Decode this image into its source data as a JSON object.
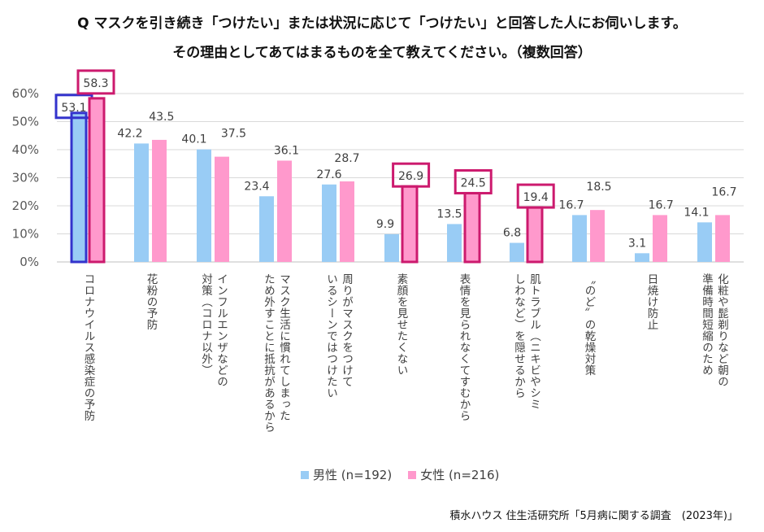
{
  "title_line1": "Q マスクを引き続き「つけたい」または状況に応じて「つけたい」と回答した人にお伺いします。",
  "title_line2": "その理由としてあてはまるものを全て教えてください。（複数回答）",
  "source": "積水ハウス 住生活研究所「5月病に関する調査　(2023年)」",
  "chart_data": {
    "type": "bar",
    "title": "",
    "xlabel": "",
    "ylabel": "",
    "ylim": [
      0,
      60
    ],
    "yticks": [
      "0%",
      "10%",
      "20%",
      "30%",
      "40%",
      "50%",
      "60%"
    ],
    "grid": true,
    "legend_placement": "bottom",
    "categories": [
      [
        "コロナウイルス感染症の予防"
      ],
      [
        "花粉の予防"
      ],
      [
        "インフルエンザなどの",
        "対策（コロナ以外）"
      ],
      [
        "マスク生活に慣れてしまった",
        "ため外すことに抵抗があるから"
      ],
      [
        "周りがマスクをつけて",
        "いるシーンではつけたい"
      ],
      [
        "素顔を見せたくない"
      ],
      [
        "表情を見られなくてすむから"
      ],
      [
        "肌トラブル（ニキビやシミ",
        "しわなど）を隠せるから"
      ],
      [
        "〝のど〟の乾燥対策"
      ],
      [
        "日焼け防止"
      ],
      [
        "化粧や髭剃りなど朝の",
        "準備時間短縮のため"
      ]
    ],
    "series": [
      {
        "name": "男性 (n=192)",
        "color": "#99ccf5",
        "values": [
          53.1,
          42.2,
          40.1,
          23.4,
          27.6,
          9.9,
          13.5,
          6.8,
          16.7,
          3.1,
          14.1
        ],
        "highlighted": [
          0
        ]
      },
      {
        "name": "女性 (n=216)",
        "color": "#ff99cc",
        "values": [
          58.3,
          43.5,
          37.5,
          36.1,
          28.7,
          26.9,
          24.5,
          19.4,
          18.5,
          16.7,
          16.7
        ],
        "highlighted": [
          0,
          5,
          6,
          7
        ]
      }
    ],
    "highlight_colors": {
      "男性 (n=192)": "#3333cc",
      "女性 (n=216)": "#cc1a6e"
    }
  }
}
